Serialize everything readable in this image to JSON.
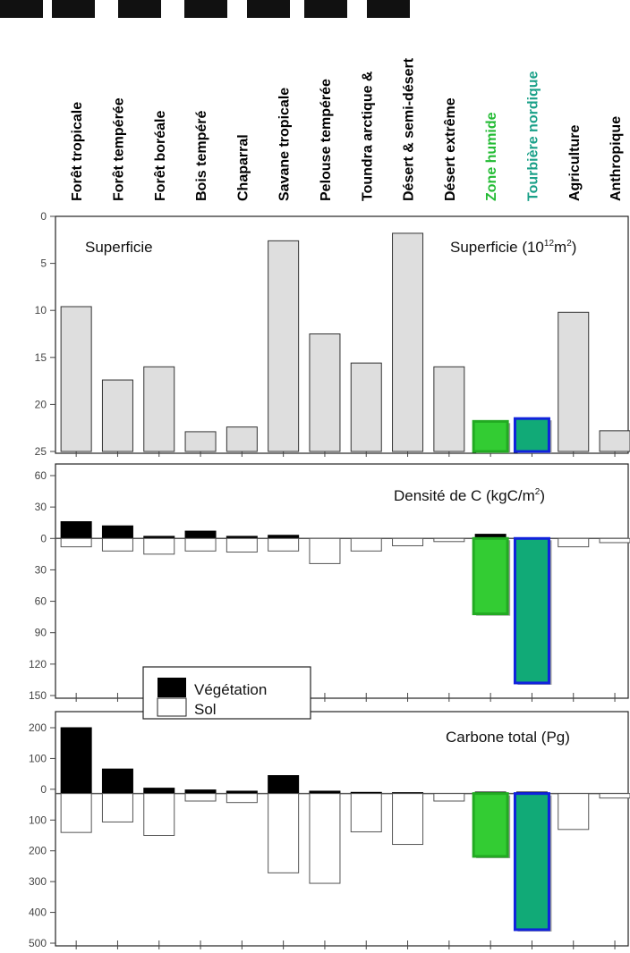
{
  "chart_data": {
    "type": "bar",
    "categories": [
      "Forêt tropicale",
      "Forêt tempérée",
      "Forêt boréale",
      "Bois tempéré",
      "Chaparral",
      "Savane tropicale",
      "Pelouse tempérée",
      "Toundra arctique &",
      "Désert & semi-désert",
      "Désert extrême",
      "Zone humide",
      "Tourbière nordique",
      "Agriculture",
      "Anthropique"
    ],
    "category_colors": [
      "#000000",
      "#000000",
      "#000000",
      "#000000",
      "#000000",
      "#000000",
      "#000000",
      "#000000",
      "#000000",
      "#000000",
      "#22bb33",
      "#1aa088",
      "#000000",
      "#000000"
    ],
    "highlight": {
      "Zone humide": {
        "fill": "#33cc33",
        "stroke": "#22aa22"
      },
      "Tourbière nordique": {
        "fill": "#11aa77",
        "stroke": "#1122dd"
      }
    },
    "panels": [
      {
        "title_main": "Superficie (10",
        "title_sup": "12",
        "title_mid": "m",
        "title_sup2": "2",
        "title_end": ")",
        "label": "Superficie",
        "ylim": [
          0,
          25
        ],
        "ticks": [
          "0",
          "5",
          "10",
          "15",
          "20",
          "25"
        ],
        "series": [
          {
            "values": [
              15.4,
              7.6,
              9.0,
              2.1,
              2.6,
              22.4,
              12.5,
              9.4,
              23.2,
              9.0,
              3.2,
              3.5,
              14.8,
              2.2
            ]
          }
        ]
      },
      {
        "title_main": "Densité de C (kgC/m",
        "title_sup": "2",
        "title_end": ")",
        "ylim": [
          -150,
          60
        ],
        "ticks": [
          "60",
          "30",
          "0",
          "30",
          "60",
          "90",
          "120",
          "150"
        ],
        "series": [
          {
            "name": "Végétation",
            "values": [
              16,
              12,
              2,
              7,
              2,
              3,
              0,
              0,
              0,
              0,
              4,
              0,
              0,
              0
            ]
          },
          {
            "name": "Sol",
            "values": [
              -8,
              -12,
              -15,
              -12,
              -13,
              -12,
              -24,
              -12,
              -7,
              -3,
              -72,
              -138,
              -8,
              -4
            ]
          }
        ]
      },
      {
        "title_main": "Carbone total (Pg)",
        "ylim": [
          -500,
          220
        ],
        "ticks": [
          "200",
          "100",
          "0",
          "100",
          "200",
          "300",
          "400",
          "500"
        ],
        "series": [
          {
            "name": "Végétation",
            "values": [
              220,
              82,
              18,
              12,
              8,
              60,
              8,
              4,
              3,
              0,
              5,
              5,
              0,
              0
            ]
          },
          {
            "name": "Sol",
            "values": [
              -130,
              -95,
              -140,
              -25,
              -30,
              -265,
              -300,
              -128,
              -170,
              -25,
              -210,
              -455,
              -120,
              -15
            ]
          }
        ]
      }
    ],
    "legend": {
      "vegetation": "Végétation",
      "sol": "Sol"
    }
  }
}
